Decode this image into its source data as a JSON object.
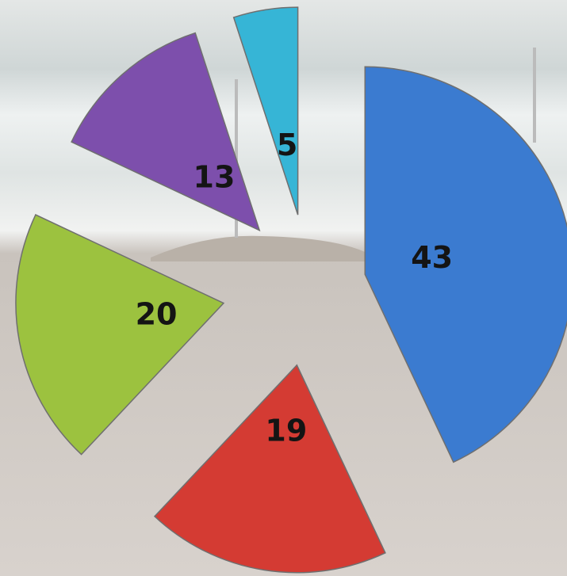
{
  "chart_data": {
    "type": "pie",
    "values": [
      43,
      19,
      20,
      13,
      5
    ],
    "colors": [
      "#3b7bd0",
      "#d43b33",
      "#9cc23f",
      "#7d4fac",
      "#36b5d6"
    ]
  }
}
